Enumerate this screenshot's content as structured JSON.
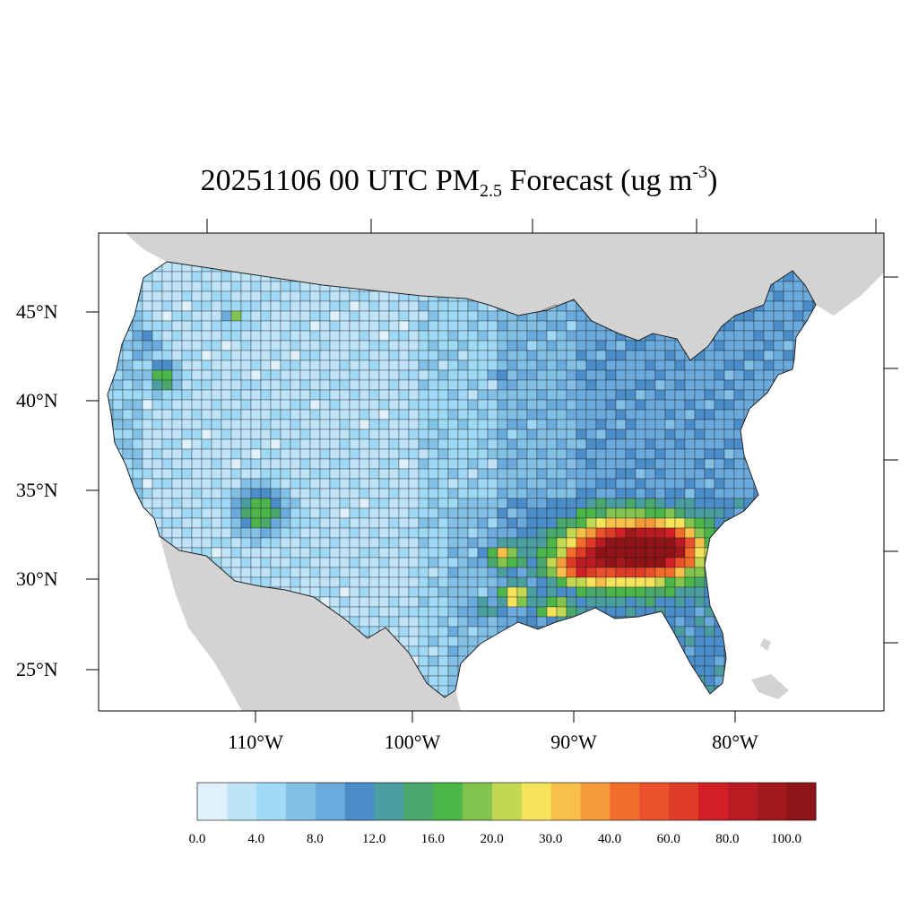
{
  "title": {
    "prefix": "20251106 00 UTC PM",
    "subscript": "2.5",
    "middle": " Forecast (ug m",
    "superscript": "-3",
    "suffix": ")"
  },
  "map": {
    "region": "Contiguous United States",
    "land_color": "#d3d3d3",
    "water_color": "#ffffff",
    "lat_labels": [
      "45°N",
      "40°N",
      "35°N",
      "30°N",
      "25°N"
    ],
    "lon_labels": [
      "110°W",
      "100°W",
      "90°W",
      "80°W"
    ]
  },
  "colorbar": {
    "colors": [
      "#dff1fb",
      "#bfe4f8",
      "#a0d9f5",
      "#82c0e6",
      "#6aaadc",
      "#4b8dc9",
      "#4a9ea0",
      "#4aa86c",
      "#4db64a",
      "#82c44e",
      "#c2d852",
      "#f5e35c",
      "#f8bf4a",
      "#f59a3a",
      "#f26d2c",
      "#e9502b",
      "#de3c27",
      "#d21f26",
      "#b81b22",
      "#a3181d",
      "#8e1417"
    ],
    "labels": [
      "0.0",
      "4.0",
      "8.0",
      "12.0",
      "16.0",
      "20.0",
      "30.0",
      "40.0",
      "60.0",
      "80.0",
      "100.0"
    ]
  }
}
